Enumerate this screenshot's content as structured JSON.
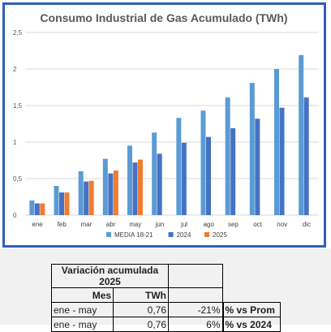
{
  "chart_data": {
    "type": "bar",
    "title": "Consumo Industrial de Gas Acumulado (TWh)",
    "categories": [
      "ene",
      "feb",
      "mar",
      "abr",
      "may",
      "jun",
      "jul",
      "ago",
      "sep",
      "oct",
      "nov",
      "dic"
    ],
    "series": [
      {
        "name": "MEDIA 18-21",
        "color": "#5b9bd5",
        "values": [
          0.2,
          0.4,
          0.6,
          0.77,
          0.95,
          1.13,
          1.33,
          1.43,
          1.61,
          1.81,
          2.0,
          2.19
        ]
      },
      {
        "name": "2024",
        "color": "#4472c4",
        "values": [
          0.16,
          0.31,
          0.46,
          0.57,
          0.72,
          0.84,
          0.99,
          1.07,
          1.19,
          1.32,
          1.47,
          1.61
        ]
      },
      {
        "name": "2025",
        "color": "#ed7d31",
        "values": [
          0.16,
          0.31,
          0.47,
          0.61,
          0.76,
          null,
          null,
          null,
          null,
          null,
          null,
          null
        ]
      }
    ],
    "yticks": [
      "0",
      "0,5",
      "1",
      "1,5",
      "2",
      "2,5"
    ],
    "ylim": [
      0,
      2.5
    ],
    "grid": true,
    "legend": "bottom"
  },
  "table": {
    "title": "Variación acumulada 2025",
    "headers": [
      "Mes",
      "TWh"
    ],
    "rows": [
      {
        "mes": "ene - may",
        "twh": "0,76",
        "pct": "-21%",
        "label": "% vs Prom"
      },
      {
        "mes": "ene - may",
        "twh": "0,76",
        "pct": "6%",
        "label": "% vs 2024"
      }
    ]
  }
}
